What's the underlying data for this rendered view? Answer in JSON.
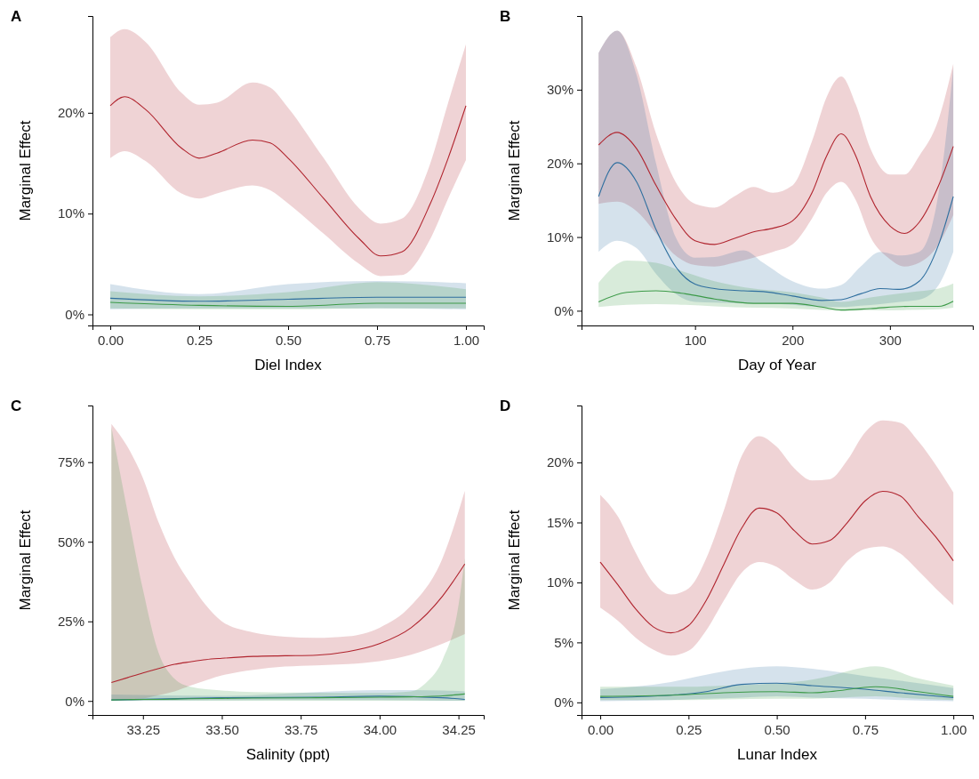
{
  "chart_data": [
    {
      "type": "line",
      "title": "A",
      "xlabel": "Diel Index",
      "ylabel": "Marginal Effect",
      "xlim": [
        -0.05,
        1.05
      ],
      "ylim": [
        -1.1,
        29.6
      ],
      "xticks": [
        {
          "value": 0,
          "label": "0.00"
        },
        {
          "value": 0.25,
          "label": "0.25"
        },
        {
          "value": 0.5,
          "label": "0.50"
        },
        {
          "value": 0.75,
          "label": "0.75"
        },
        {
          "value": 1,
          "label": "1.00"
        }
      ],
      "yticks": [
        {
          "value": 0,
          "label": "0%"
        },
        {
          "value": 10,
          "label": "10%"
        },
        {
          "value": 20,
          "label": "20%"
        }
      ],
      "series": [
        {
          "color": "#b0242e",
          "x": [
            0,
            0.04,
            0.1,
            0.2,
            0.25,
            0.3,
            0.4,
            0.45,
            0.5,
            0.6,
            0.7,
            0.76,
            0.82,
            0.9,
            0.95,
            1.0
          ],
          "values": [
            20.7,
            21.6,
            20.3,
            16.5,
            15.5,
            16.0,
            17.3,
            17.0,
            15.5,
            11.5,
            7.5,
            5.8,
            6.2,
            11,
            15.5,
            20.7
          ],
          "upper": [
            27.5,
            28.3,
            27,
            22,
            20.8,
            21,
            23,
            22.5,
            20.5,
            15.5,
            10.5,
            9,
            9.5,
            15,
            21,
            26.8
          ],
          "lower": [
            15.5,
            16.2,
            15.2,
            12,
            11.5,
            12,
            12.8,
            12.3,
            11,
            8,
            5,
            3.8,
            3.9,
            7.5,
            11.5,
            15.3
          ]
        },
        {
          "color": "#2f6f9f",
          "x": [
            0,
            0.25,
            0.5,
            0.75,
            1
          ],
          "values": [
            1.6,
            1.3,
            1.5,
            1.7,
            1.7
          ],
          "upper": [
            3,
            2,
            3,
            3.3,
            3.1
          ],
          "lower": [
            0.5,
            0.6,
            0.6,
            0.6,
            0.5
          ]
        },
        {
          "color": "#3c9a48",
          "x": [
            0,
            0.25,
            0.5,
            0.75,
            1
          ],
          "values": [
            1.2,
            0.9,
            0.8,
            1.1,
            1.1
          ],
          "upper": [
            2.3,
            1.8,
            2.2,
            3.2,
            2.5
          ],
          "lower": [
            0.6,
            0.5,
            0.5,
            0.6,
            0.6
          ]
        }
      ]
    },
    {
      "type": "line",
      "title": "B",
      "xlabel": "Day of Year",
      "ylabel": "Marginal Effect",
      "xlim": [
        -16.5,
        385
      ],
      "ylim": [
        -2,
        40
      ],
      "xticks": [
        100,
        200,
        300
      ],
      "yticks": [
        {
          "value": 0,
          "label": "0%"
        },
        {
          "value": 10,
          "label": "10%"
        },
        {
          "value": 20,
          "label": "20%"
        },
        {
          "value": 30,
          "label": "30%"
        }
      ],
      "series": [
        {
          "color": "#b0242e",
          "x": [
            1,
            20,
            40,
            60,
            80,
            100,
            120,
            140,
            160,
            180,
            200,
            220,
            235,
            250,
            265,
            280,
            300,
            315,
            330,
            350,
            365
          ],
          "values": [
            22.5,
            24.2,
            22,
            17,
            12.5,
            9.5,
            9.0,
            9.8,
            10.7,
            11.2,
            12.2,
            16,
            21,
            24,
            21,
            15.5,
            11.5,
            10.5,
            12,
            17,
            22.3
          ],
          "upper": [
            35,
            38,
            33,
            24,
            17.5,
            14.5,
            14,
            15.5,
            16.8,
            16,
            17,
            23,
            29,
            31.8,
            28,
            22,
            18.5,
            18.5,
            21,
            26,
            33.5
          ],
          "lower": [
            14.5,
            14.8,
            13.5,
            10.5,
            7.5,
            6.2,
            6,
            6.5,
            7.2,
            8,
            9,
            12.5,
            16,
            17.5,
            15,
            10,
            7,
            6,
            6.5,
            9,
            13
          ]
        },
        {
          "color": "#2f6f9f",
          "x": [
            1,
            20,
            40,
            60,
            80,
            100,
            120,
            150,
            170,
            200,
            230,
            250,
            270,
            290,
            310,
            330,
            350,
            365
          ],
          "values": [
            15.5,
            20.1,
            17.5,
            11,
            6,
            3.6,
            3.0,
            2.7,
            2.6,
            2.0,
            1.4,
            1.5,
            2.3,
            3.0,
            2.9,
            4,
            9,
            15.5
          ],
          "upper": [
            35,
            38,
            32,
            20,
            10,
            7.2,
            7.3,
            8.2,
            6.5,
            4,
            3,
            3.5,
            6,
            8,
            7.5,
            8,
            16,
            33
          ],
          "lower": [
            8,
            9.5,
            8.5,
            5,
            2.3,
            1.2,
            1.1,
            1,
            1,
            0.8,
            0.5,
            0.5,
            0.7,
            0.9,
            1.2,
            1.5,
            3.5,
            8
          ]
        },
        {
          "color": "#3c9a48",
          "x": [
            1,
            30,
            60,
            90,
            120,
            160,
            200,
            230,
            250,
            280,
            320,
            350,
            365
          ],
          "values": [
            1.2,
            2.5,
            2.7,
            2.3,
            1.6,
            1.0,
            1.0,
            0.5,
            0.1,
            0.3,
            0.6,
            0.6,
            1.3
          ],
          "upper": [
            3.8,
            6.8,
            6.5,
            5.2,
            4,
            3,
            2.5,
            1.8,
            1.2,
            1.8,
            2.5,
            3,
            3.7
          ],
          "lower": [
            0.5,
            0.8,
            0.9,
            0.8,
            0.6,
            0.4,
            0.3,
            0.1,
            0,
            0.05,
            0.1,
            0.2,
            0.4
          ]
        }
      ]
    },
    {
      "type": "line",
      "title": "C",
      "xlabel": "Salinity (ppt)",
      "ylabel": "Marginal Effect",
      "xlim": [
        33.09,
        34.33
      ],
      "ylim": [
        -4.4,
        92.8
      ],
      "xticks": [
        33.25,
        {
          "value": 33.5,
          "label": "33.50"
        },
        33.75,
        {
          "value": 34,
          "label": "34.00"
        },
        34.25
      ],
      "yticks": [
        {
          "value": 0,
          "label": "0%"
        },
        {
          "value": 25,
          "label": "25%"
        },
        {
          "value": 50,
          "label": "50%"
        },
        {
          "value": 75,
          "label": "75%"
        }
      ],
      "series": [
        {
          "color": "#b0242e",
          "x": [
            33.15,
            33.2,
            33.25,
            33.3,
            33.35,
            33.4,
            33.45,
            33.5,
            33.6,
            33.7,
            33.8,
            33.9,
            34.0,
            34.1,
            34.2,
            34.27
          ],
          "values": [
            5.8,
            7.3,
            8.8,
            10.2,
            11.5,
            12.3,
            13.0,
            13.4,
            14.0,
            14.2,
            14.4,
            15.5,
            18,
            23,
            33,
            43
          ],
          "upper": [
            87,
            80,
            70,
            56,
            45,
            37,
            30,
            25,
            21.5,
            20.2,
            19.8,
            20.3,
            23,
            30,
            45,
            66
          ],
          "lower": [
            0.5,
            0.6,
            0.8,
            1.8,
            3,
            4.8,
            6.5,
            8,
            9.8,
            10.8,
            11.2,
            11.6,
            12.5,
            14.5,
            18,
            21
          ]
        },
        {
          "color": "#2f6f9f",
          "x": [
            33.15,
            33.5,
            33.8,
            34.0,
            34.2,
            34.27
          ],
          "values": [
            0.3,
            1.0,
            1.2,
            1.5,
            1.0,
            0.5
          ],
          "upper": [
            2,
            1.6,
            2.8,
            3.4,
            3.3,
            3
          ],
          "lower": [
            0,
            0.2,
            0.3,
            0.3,
            0.1,
            0
          ]
        },
        {
          "color": "#3c9a48",
          "x": [
            33.15,
            33.2,
            33.25,
            33.3,
            33.35,
            33.4,
            33.5,
            33.6,
            33.8,
            34.0,
            34.1,
            34.15,
            34.2,
            34.25,
            34.27
          ],
          "values": [
            0.3,
            0.4,
            0.5,
            0.5,
            0.6,
            0.7,
            0.8,
            0.9,
            1.0,
            1.2,
            1.3,
            1.4,
            1.6,
            2.0,
            2.2
          ],
          "upper": [
            86,
            60,
            35,
            15,
            7,
            4.5,
            3.3,
            2.8,
            2.6,
            2.5,
            3,
            6,
            13,
            30,
            45
          ],
          "lower": [
            0.1,
            0.1,
            0.1,
            0.1,
            0.1,
            0.1,
            0.1,
            0.1,
            0.1,
            0.1,
            0.1,
            0.1,
            0.1,
            0.1,
            0.1
          ]
        }
      ]
    },
    {
      "type": "line",
      "title": "D",
      "xlabel": "Lunar Index",
      "ylabel": "Marginal Effect",
      "xlim": [
        -0.053,
        1.055
      ],
      "ylim": [
        -1.05,
        24.75
      ],
      "xticks": [
        {
          "value": 0,
          "label": "0.00"
        },
        {
          "value": 0.25,
          "label": "0.25"
        },
        {
          "value": 0.5,
          "label": "0.50"
        },
        {
          "value": 0.75,
          "label": "0.75"
        },
        {
          "value": 1,
          "label": "1.00"
        }
      ],
      "yticks": [
        {
          "value": 0,
          "label": "0%"
        },
        {
          "value": 5,
          "label": "5%"
        },
        {
          "value": 10,
          "label": "10%"
        },
        {
          "value": 15,
          "label": "15%"
        },
        {
          "value": 20,
          "label": "20%"
        }
      ],
      "series": [
        {
          "color": "#b0242e",
          "x": [
            0,
            0.05,
            0.1,
            0.15,
            0.2,
            0.25,
            0.3,
            0.35,
            0.4,
            0.45,
            0.5,
            0.55,
            0.6,
            0.65,
            0.7,
            0.75,
            0.8,
            0.85,
            0.9,
            0.95,
            1.0
          ],
          "values": [
            11.7,
            9.8,
            7.8,
            6.3,
            5.8,
            6.4,
            8.5,
            11.5,
            14.5,
            16.2,
            15.8,
            14.3,
            13.2,
            13.5,
            15,
            16.8,
            17.6,
            17.2,
            15.5,
            13.8,
            11.8
          ],
          "upper": [
            17.3,
            15.5,
            12.5,
            10.0,
            9.0,
            9.5,
            12,
            16,
            20.5,
            22.2,
            21.3,
            19.5,
            18.5,
            18.6,
            20.2,
            22.5,
            23.5,
            23.3,
            21.8,
            19.8,
            17.5
          ],
          "lower": [
            7.9,
            6.8,
            5.4,
            4.4,
            3.9,
            4.3,
            6,
            8.5,
            10.8,
            11.7,
            11.3,
            10.2,
            9.4,
            10,
            11.8,
            12.8,
            13,
            12.4,
            11,
            9.5,
            8.1
          ]
        },
        {
          "color": "#2f6f9f",
          "x": [
            0,
            0.2,
            0.3,
            0.4,
            0.5,
            0.6,
            0.75,
            0.85,
            1
          ],
          "values": [
            0.4,
            0.6,
            0.9,
            1.5,
            1.6,
            1.4,
            1.1,
            0.8,
            0.4
          ],
          "upper": [
            1.1,
            1.7,
            2.3,
            2.8,
            3.0,
            2.8,
            2.2,
            1.8,
            1.2
          ],
          "lower": [
            0.1,
            0.2,
            0.3,
            0.4,
            0.5,
            0.4,
            0.3,
            0.2,
            0.1
          ]
        },
        {
          "color": "#3c9a48",
          "x": [
            0,
            0.25,
            0.35,
            0.5,
            0.6,
            0.65,
            0.78,
            0.9,
            1
          ],
          "values": [
            0.5,
            0.65,
            0.8,
            0.9,
            0.8,
            0.9,
            1.3,
            0.9,
            0.5
          ],
          "upper": [
            1.3,
            1.3,
            1.4,
            1.6,
            1.9,
            2.2,
            3.0,
            2.0,
            1.4
          ],
          "lower": [
            0.2,
            0.2,
            0.25,
            0.3,
            0.3,
            0.35,
            0.5,
            0.3,
            0.2
          ]
        }
      ]
    }
  ]
}
